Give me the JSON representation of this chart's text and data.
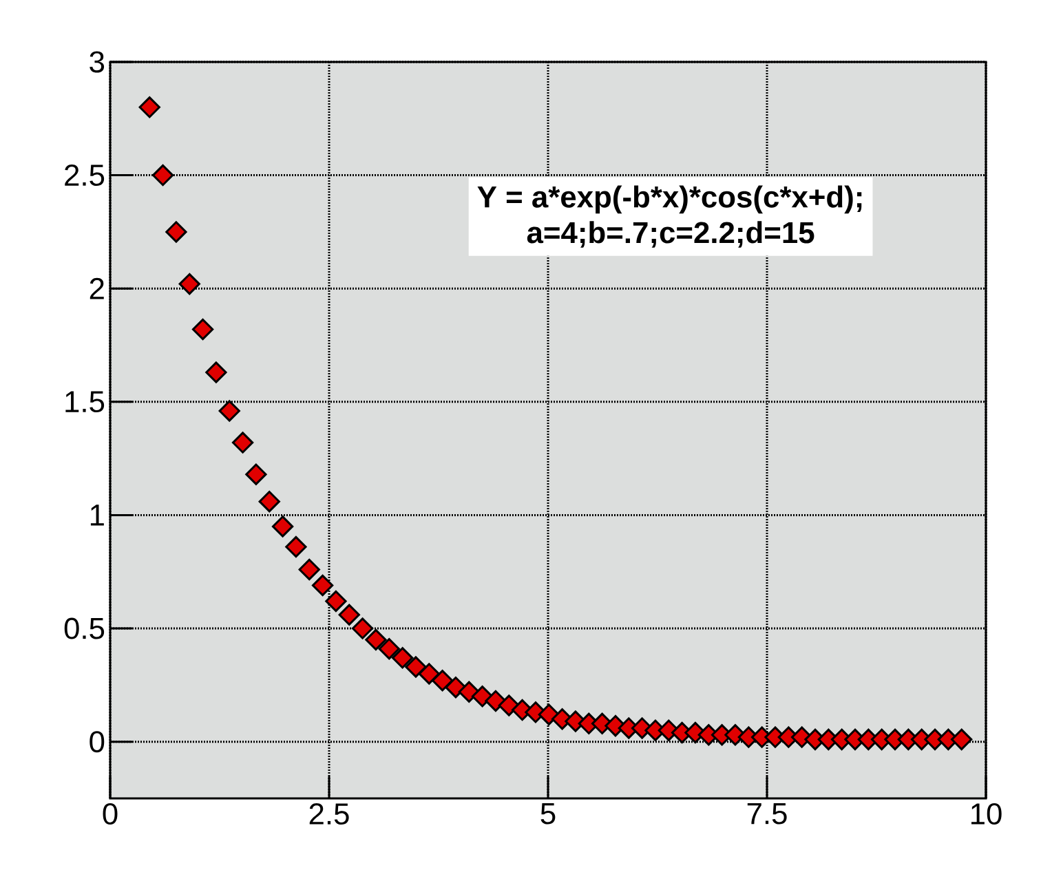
{
  "chart_data": {
    "type": "scatter",
    "annotations": [
      "Y = a*exp(-b*x)*cos(c*x+d);",
      "a=4;b=.7;c=2.2;d=15"
    ],
    "x": [
      0.45,
      0.602,
      0.754,
      0.906,
      1.058,
      1.21,
      1.362,
      1.514,
      1.666,
      1.818,
      1.97,
      2.122,
      2.274,
      2.426,
      2.578,
      2.73,
      2.882,
      3.034,
      3.186,
      3.338,
      3.49,
      3.642,
      3.794,
      3.946,
      4.098,
      4.25,
      4.402,
      4.554,
      4.706,
      4.858,
      5.01,
      5.162,
      5.314,
      5.466,
      5.618,
      5.77,
      5.922,
      6.074,
      6.226,
      6.378,
      6.53,
      6.682,
      6.834,
      6.986,
      7.138,
      7.29,
      7.442,
      7.594,
      7.746,
      7.898,
      8.05,
      8.202,
      8.354,
      8.506,
      8.658,
      8.81,
      8.962,
      9.114,
      9.266,
      9.418,
      9.57,
      9.722
    ],
    "values": [
      2.8,
      2.5,
      2.25,
      2.02,
      1.82,
      1.63,
      1.46,
      1.32,
      1.18,
      1.06,
      0.95,
      0.86,
      0.76,
      0.69,
      0.62,
      0.56,
      0.5,
      0.45,
      0.41,
      0.37,
      0.33,
      0.3,
      0.27,
      0.24,
      0.22,
      0.2,
      0.18,
      0.16,
      0.14,
      0.13,
      0.12,
      0.1,
      0.09,
      0.08,
      0.08,
      0.07,
      0.06,
      0.06,
      0.05,
      0.05,
      0.04,
      0.04,
      0.03,
      0.03,
      0.03,
      0.02,
      0.02,
      0.02,
      0.02,
      0.02,
      0.01,
      0.01,
      0.01,
      0.01,
      0.01,
      0.01,
      0.01,
      0.01,
      0.01,
      0.01,
      0.01,
      0.01
    ],
    "color": "#e00000",
    "marker": "diamond",
    "grid": true,
    "xlim": [
      0,
      10
    ],
    "ylim": [
      -0.25,
      3
    ],
    "xticks": [
      0,
      2.5,
      5,
      7.5,
      10
    ],
    "yticks": [
      0,
      0.5,
      1,
      1.5,
      2,
      2.5,
      3
    ]
  }
}
